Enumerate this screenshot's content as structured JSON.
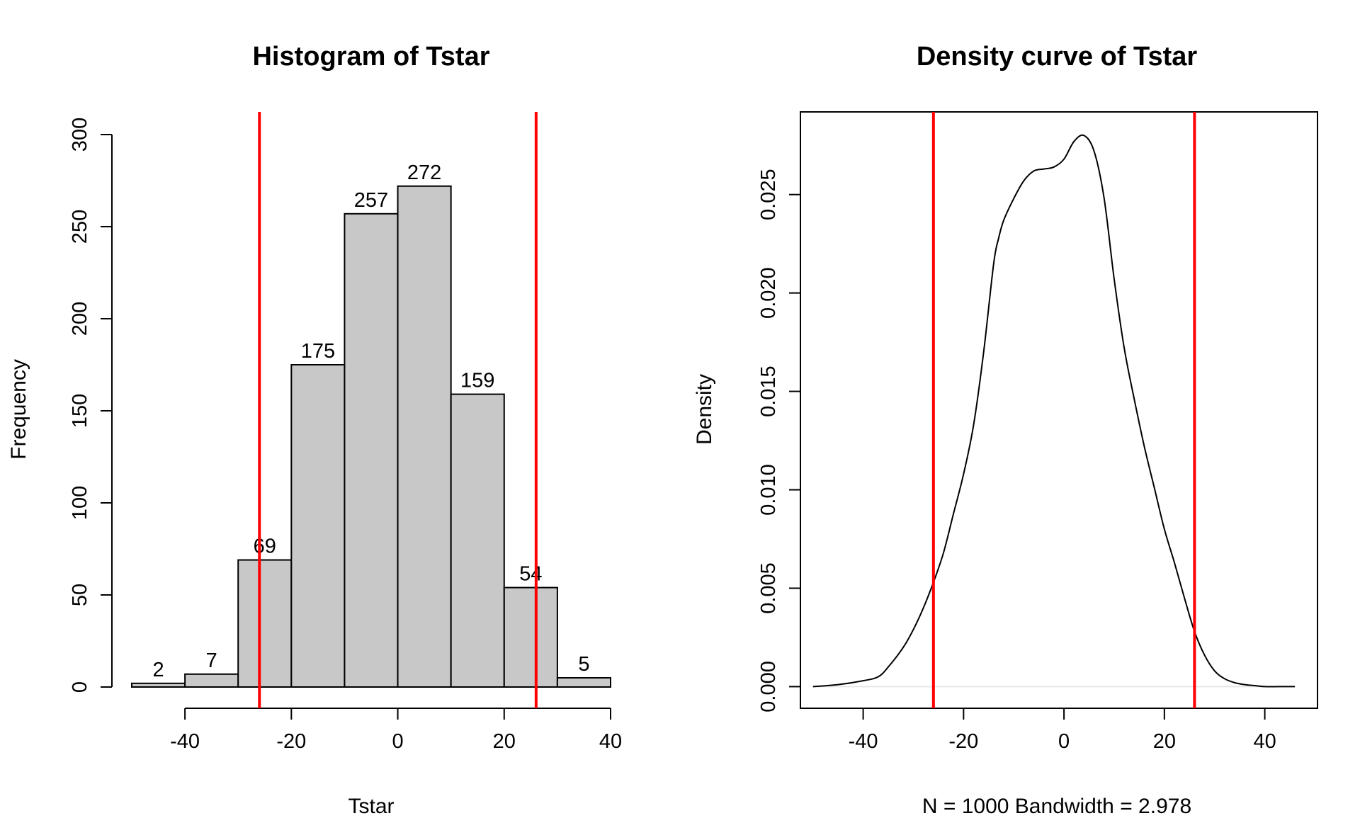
{
  "chart_data": [
    {
      "type": "bar",
      "title": "Histogram of Tstar",
      "xlabel": "Tstar",
      "ylabel": "Frequency",
      "bin_edges": [
        -50,
        -40,
        -30,
        -20,
        -10,
        0,
        10,
        20,
        30,
        40
      ],
      "values": [
        2,
        7,
        69,
        175,
        257,
        272,
        159,
        54,
        5
      ],
      "value_labels": [
        "2",
        "7",
        "69",
        "175",
        "257",
        "272",
        "159",
        "54",
        "5"
      ],
      "xlim": [
        -50,
        40
      ],
      "ylim": [
        0,
        300
      ],
      "xticks": [
        -40,
        -20,
        0,
        20,
        40
      ],
      "xtick_labels": [
        "-40",
        "-20",
        "0",
        "20",
        "40"
      ],
      "yticks": [
        0,
        50,
        100,
        150,
        200,
        250,
        300
      ],
      "ytick_labels": [
        "0",
        "50",
        "100",
        "150",
        "200",
        "250",
        "300"
      ],
      "vlines": [
        -26,
        26
      ],
      "vline_color": "#ff0000",
      "bar_color": "#c8c8c8"
    },
    {
      "type": "line",
      "title": "Density curve of Tstar",
      "xlabel": "N = 1000   Bandwidth = 2.978",
      "ylabel": "Density",
      "x": [
        -50,
        -45,
        -40,
        -37,
        -35,
        -32,
        -30,
        -28,
        -26,
        -24,
        -22,
        -20,
        -18,
        -16,
        -14,
        -13,
        -12,
        -10,
        -8,
        -6,
        -4,
        -2,
        0,
        2,
        4,
        6,
        8,
        10,
        12,
        14,
        16,
        18,
        20,
        22,
        24,
        26,
        28,
        30,
        32,
        34,
        36,
        38,
        40,
        43,
        46
      ],
      "y": [
        0.0,
        0.0001,
        0.0003,
        0.0005,
        0.001,
        0.002,
        0.0029,
        0.004,
        0.0053,
        0.0068,
        0.0088,
        0.0108,
        0.0133,
        0.017,
        0.0215,
        0.0228,
        0.0237,
        0.0248,
        0.0257,
        0.0262,
        0.0263,
        0.0264,
        0.0268,
        0.0277,
        0.028,
        0.0272,
        0.0248,
        0.0207,
        0.0172,
        0.0146,
        0.0122,
        0.0101,
        0.008,
        0.0063,
        0.0045,
        0.0028,
        0.0016,
        0.0008,
        0.0004,
        0.0002,
        0.0001,
        5e-05,
        0.0,
        0.0,
        0.0
      ],
      "xlim": [
        -52.5,
        50.5
      ],
      "ylim": [
        -0.0011,
        0.0292
      ],
      "xticks": [
        -40,
        -20,
        0,
        20,
        40
      ],
      "xtick_labels": [
        "-40",
        "-20",
        "0",
        "20",
        "40"
      ],
      "yticks": [
        0.0,
        0.005,
        0.01,
        0.015,
        0.02,
        0.025
      ],
      "ytick_labels": [
        "0.000",
        "0.005",
        "0.010",
        "0.015",
        "0.020",
        "0.025"
      ],
      "vlines": [
        -26,
        26
      ],
      "vline_color": "#ff0000"
    }
  ]
}
